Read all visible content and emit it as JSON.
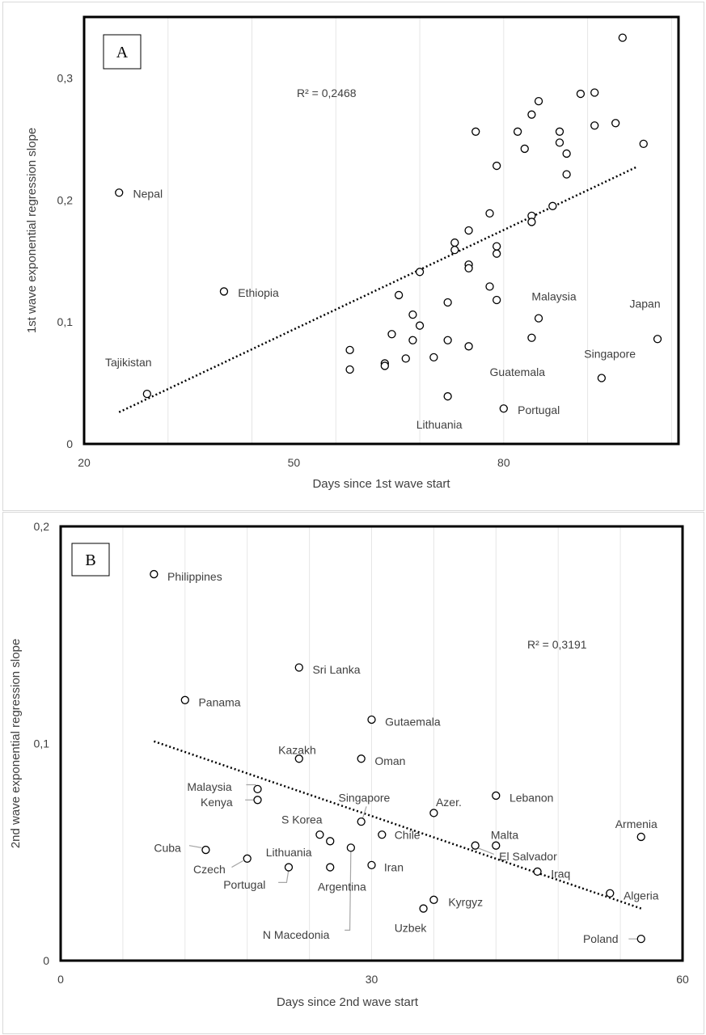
{
  "charts": [
    {
      "panel_label": "A",
      "type": "scatter",
      "xlabel": "Days since 1st wave start",
      "ylabel": "1st wave exponential regression slope",
      "r2_text": "R² = 0,2468",
      "xlim": [
        20,
        105
      ],
      "ylim": [
        0,
        0.35
      ],
      "xticks": [
        {
          "v": 20,
          "t": "20"
        },
        {
          "v": 50,
          "t": "50"
        },
        {
          "v": 80,
          "t": "80"
        }
      ],
      "yticks": [
        {
          "v": 0,
          "t": "0"
        },
        {
          "v": 0.1,
          "t": "0,1"
        },
        {
          "v": 0.2,
          "t": "0,2"
        },
        {
          "v": 0.3,
          "t": "0,3"
        }
      ],
      "xgrid": [
        20,
        32,
        44,
        56,
        68,
        80,
        92,
        104
      ],
      "trendline": {
        "x1": 25,
        "y1": 0.026,
        "x2": 99,
        "y2": 0.227
      },
      "points": [
        {
          "x": 25,
          "y": 0.206
        },
        {
          "x": 29,
          "y": 0.041
        },
        {
          "x": 40,
          "y": 0.125
        },
        {
          "x": 58,
          "y": 0.077
        },
        {
          "x": 58,
          "y": 0.061
        },
        {
          "x": 63,
          "y": 0.066
        },
        {
          "x": 63,
          "y": 0.064
        },
        {
          "x": 64,
          "y": 0.09
        },
        {
          "x": 65,
          "y": 0.122
        },
        {
          "x": 66,
          "y": 0.07
        },
        {
          "x": 67,
          "y": 0.106
        },
        {
          "x": 67,
          "y": 0.085
        },
        {
          "x": 68,
          "y": 0.097
        },
        {
          "x": 68,
          "y": 0.141
        },
        {
          "x": 70,
          "y": 0.071
        },
        {
          "x": 72,
          "y": 0.116
        },
        {
          "x": 72,
          "y": 0.085
        },
        {
          "x": 72,
          "y": 0.039
        },
        {
          "x": 73,
          "y": 0.165
        },
        {
          "x": 73,
          "y": 0.159
        },
        {
          "x": 75,
          "y": 0.175
        },
        {
          "x": 75,
          "y": 0.147
        },
        {
          "x": 75,
          "y": 0.144
        },
        {
          "x": 75,
          "y": 0.08
        },
        {
          "x": 76,
          "y": 0.256
        },
        {
          "x": 78,
          "y": 0.189
        },
        {
          "x": 78,
          "y": 0.129
        },
        {
          "x": 79,
          "y": 0.228
        },
        {
          "x": 79,
          "y": 0.162
        },
        {
          "x": 79,
          "y": 0.156
        },
        {
          "x": 79,
          "y": 0.118
        },
        {
          "x": 80,
          "y": 0.029
        },
        {
          "x": 82,
          "y": 0.256
        },
        {
          "x": 83,
          "y": 0.242
        },
        {
          "x": 84,
          "y": 0.27
        },
        {
          "x": 84,
          "y": 0.187
        },
        {
          "x": 84,
          "y": 0.182
        },
        {
          "x": 84,
          "y": 0.087
        },
        {
          "x": 85,
          "y": 0.281
        },
        {
          "x": 85,
          "y": 0.103
        },
        {
          "x": 87,
          "y": 0.195
        },
        {
          "x": 88,
          "y": 0.256
        },
        {
          "x": 88,
          "y": 0.247
        },
        {
          "x": 89,
          "y": 0.238
        },
        {
          "x": 89,
          "y": 0.221
        },
        {
          "x": 91,
          "y": 0.287
        },
        {
          "x": 93,
          "y": 0.288
        },
        {
          "x": 93,
          "y": 0.261
        },
        {
          "x": 94,
          "y": 0.054
        },
        {
          "x": 96,
          "y": 0.263
        },
        {
          "x": 97,
          "y": 0.333
        },
        {
          "x": 100,
          "y": 0.246
        },
        {
          "x": 102,
          "y": 0.086
        }
      ],
      "labels": [
        {
          "text": "Nepal",
          "x": 27,
          "y": 0.205,
          "anchor": "start"
        },
        {
          "text": "Ethiopia",
          "x": 42,
          "y": 0.124,
          "anchor": "start"
        },
        {
          "text": "Tajikistan",
          "x": 23,
          "y": 0.067,
          "anchor": "start"
        },
        {
          "text": "Lithuania",
          "x": 67.5,
          "y": 0.016,
          "anchor": "start"
        },
        {
          "text": "Portugal",
          "x": 82,
          "y": 0.028,
          "anchor": "start"
        },
        {
          "text": "Guatemala",
          "x": 78,
          "y": 0.059,
          "anchor": "start"
        },
        {
          "text": "Malaysia",
          "x": 84,
          "y": 0.121,
          "anchor": "start"
        },
        {
          "text": "Japan",
          "x": 98,
          "y": 0.115,
          "anchor": "start"
        },
        {
          "text": "Singapore",
          "x": 91.5,
          "y": 0.074,
          "anchor": "start"
        }
      ]
    },
    {
      "panel_label": "B",
      "type": "scatter",
      "xlabel": "Days since 2nd wave start",
      "ylabel": "2nd wave exponential regression slope",
      "r2_text": "R² = 0,3191",
      "xlim": [
        0,
        60
      ],
      "ylim": [
        0,
        0.2
      ],
      "xticks": [
        {
          "v": 0,
          "t": "0"
        },
        {
          "v": 30,
          "t": "30"
        },
        {
          "v": 60,
          "t": "60"
        }
      ],
      "yticks": [
        {
          "v": 0,
          "t": "0"
        },
        {
          "v": 0.1,
          "t": "0,1"
        },
        {
          "v": 0.2,
          "t": "0,2"
        }
      ],
      "xgrid": [
        6,
        12,
        18,
        24,
        30,
        36,
        42,
        48,
        54
      ],
      "trendline": {
        "x1": 9,
        "y1": 0.101,
        "x2": 56,
        "y2": 0.024
      },
      "points": [
        {
          "x": 9,
          "y": 0.178
        },
        {
          "x": 12,
          "y": 0.12
        },
        {
          "x": 14,
          "y": 0.051
        },
        {
          "x": 18,
          "y": 0.047
        },
        {
          "x": 19,
          "y": 0.079
        },
        {
          "x": 19,
          "y": 0.074
        },
        {
          "x": 22,
          "y": 0.043
        },
        {
          "x": 23,
          "y": 0.135
        },
        {
          "x": 23,
          "y": 0.093
        },
        {
          "x": 25,
          "y": 0.058
        },
        {
          "x": 26,
          "y": 0.055
        },
        {
          "x": 26,
          "y": 0.043
        },
        {
          "x": 28,
          "y": 0.052
        },
        {
          "x": 29,
          "y": 0.064
        },
        {
          "x": 29,
          "y": 0.093
        },
        {
          "x": 30,
          "y": 0.111
        },
        {
          "x": 30,
          "y": 0.044
        },
        {
          "x": 31,
          "y": 0.058
        },
        {
          "x": 35,
          "y": 0.024
        },
        {
          "x": 36,
          "y": 0.068
        },
        {
          "x": 36,
          "y": 0.028
        },
        {
          "x": 40,
          "y": 0.053
        },
        {
          "x": 42,
          "y": 0.053
        },
        {
          "x": 42,
          "y": 0.076
        },
        {
          "x": 46,
          "y": 0.041
        },
        {
          "x": 53,
          "y": 0.031
        },
        {
          "x": 56,
          "y": 0.057
        },
        {
          "x": 56,
          "y": 0.01
        }
      ],
      "labels": [
        {
          "text": "Philippines",
          "x": 10.3,
          "y": 0.177,
          "anchor": "start"
        },
        {
          "text": "Sri Lanka",
          "x": 24.3,
          "y": 0.134,
          "anchor": "start"
        },
        {
          "text": "Panama",
          "x": 13.3,
          "y": 0.119,
          "anchor": "start"
        },
        {
          "text": "Gutaemala",
          "x": 31.3,
          "y": 0.11,
          "anchor": "start"
        },
        {
          "text": "Kazakh",
          "x": 21,
          "y": 0.097,
          "anchor": "start"
        },
        {
          "text": "Oman",
          "x": 30.3,
          "y": 0.092,
          "anchor": "start"
        },
        {
          "text": "Malaysia",
          "x": 12.2,
          "y": 0.08,
          "anchor": "start"
        },
        {
          "text": "Kenya",
          "x": 13.5,
          "y": 0.073,
          "anchor": "start"
        },
        {
          "text": "Singapore",
          "x": 26.8,
          "y": 0.075,
          "anchor": "start"
        },
        {
          "text": "Azer.",
          "x": 36.2,
          "y": 0.073,
          "anchor": "start"
        },
        {
          "text": "Lebanon",
          "x": 43.3,
          "y": 0.075,
          "anchor": "start"
        },
        {
          "text": "S Korea",
          "x": 21.3,
          "y": 0.065,
          "anchor": "start"
        },
        {
          "text": "Chile",
          "x": 32.2,
          "y": 0.058,
          "anchor": "start"
        },
        {
          "text": "Malta",
          "x": 41.5,
          "y": 0.058,
          "anchor": "start"
        },
        {
          "text": "Armenia",
          "x": 53.5,
          "y": 0.063,
          "anchor": "start"
        },
        {
          "text": "Cuba",
          "x": 9,
          "y": 0.052,
          "anchor": "start"
        },
        {
          "text": "Lithuania",
          "x": 19.8,
          "y": 0.05,
          "anchor": "start"
        },
        {
          "text": "El Salvador",
          "x": 42.3,
          "y": 0.048,
          "anchor": "start"
        },
        {
          "text": "Czech",
          "x": 12.8,
          "y": 0.042,
          "anchor": "start"
        },
        {
          "text": "Iran",
          "x": 31.2,
          "y": 0.043,
          "anchor": "start"
        },
        {
          "text": "Iraq",
          "x": 47.3,
          "y": 0.04,
          "anchor": "start"
        },
        {
          "text": "Portugal",
          "x": 15.7,
          "y": 0.035,
          "anchor": "start"
        },
        {
          "text": "Argentina",
          "x": 24.8,
          "y": 0.034,
          "anchor": "start"
        },
        {
          "text": "Algeria",
          "x": 54.3,
          "y": 0.03,
          "anchor": "start"
        },
        {
          "text": "Kyrgyz",
          "x": 37.4,
          "y": 0.027,
          "anchor": "start"
        },
        {
          "text": "Uzbek",
          "x": 32.2,
          "y": 0.015,
          "anchor": "start"
        },
        {
          "text": "N Macedonia",
          "x": 19.5,
          "y": 0.012,
          "anchor": "start"
        },
        {
          "text": "Poland",
          "x": 50.4,
          "y": 0.01,
          "anchor": "start"
        }
      ],
      "leaders": [
        {
          "pts": [
            [
              17.9,
              0.081
            ],
            [
              18.8,
              0.081
            ],
            [
              19,
              0.079
            ]
          ]
        },
        {
          "pts": [
            [
              17.8,
              0.074
            ],
            [
              18.7,
              0.074
            ]
          ]
        },
        {
          "pts": [
            [
              12.4,
              0.053
            ],
            [
              13.6,
              0.052
            ]
          ]
        },
        {
          "pts": [
            [
              16.5,
              0.043
            ],
            [
              17.6,
              0.046
            ]
          ]
        },
        {
          "pts": [
            [
              21,
              0.036
            ],
            [
              21.8,
              0.036
            ],
            [
              22,
              0.042
            ]
          ]
        },
        {
          "pts": [
            [
              29.5,
              0.071
            ],
            [
              29.1,
              0.065
            ]
          ]
        },
        {
          "pts": [
            [
              27.4,
              0.014
            ],
            [
              27.9,
              0.014
            ],
            [
              28,
              0.051
            ]
          ]
        },
        {
          "pts": [
            [
              40.2,
              0.052
            ],
            [
              41.8,
              0.049
            ]
          ]
        },
        {
          "pts": [
            [
              54.8,
              0.01
            ],
            [
              55.6,
              0.01
            ]
          ]
        }
      ]
    }
  ]
}
